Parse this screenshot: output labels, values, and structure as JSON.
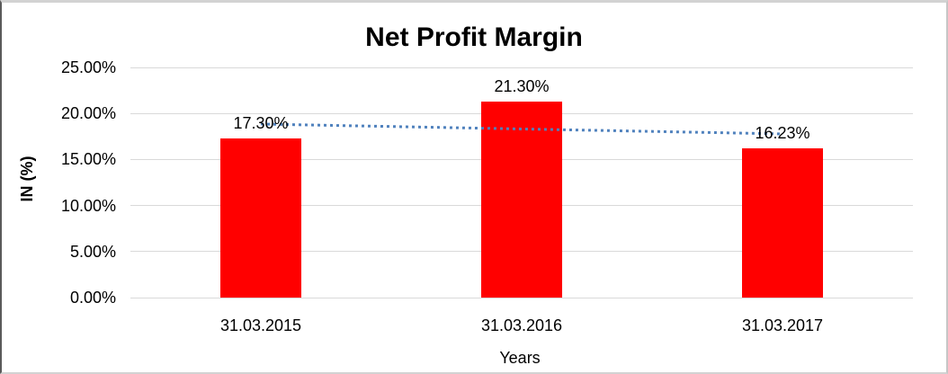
{
  "chart_data": {
    "type": "bar",
    "title": "Net Profit Margin",
    "xlabel": "Years",
    "ylabel": "IN (%)",
    "categories": [
      "31.03.2015",
      "31.03.2016",
      "31.03.2017"
    ],
    "values": [
      17.3,
      21.3,
      16.23
    ],
    "value_labels": [
      "17.30%",
      "21.30%",
      "16.23%"
    ],
    "ylim": [
      0,
      25
    ],
    "yticks": [
      {
        "label": "0.00%",
        "value": 0
      },
      {
        "label": "5.00%",
        "value": 5
      },
      {
        "label": "10.00%",
        "value": 10
      },
      {
        "label": "15.00%",
        "value": 15
      },
      {
        "label": "20.00%",
        "value": 20
      },
      {
        "label": "25.00%",
        "value": 25
      }
    ],
    "grid": true,
    "legend": false,
    "bar_color": "#FF0000",
    "gridline_color": "#D9D9D9",
    "trendline": {
      "type": "linear",
      "style": "dotted",
      "color": "#4F81BD",
      "start_value": 18.85,
      "end_value": 17.78
    }
  }
}
